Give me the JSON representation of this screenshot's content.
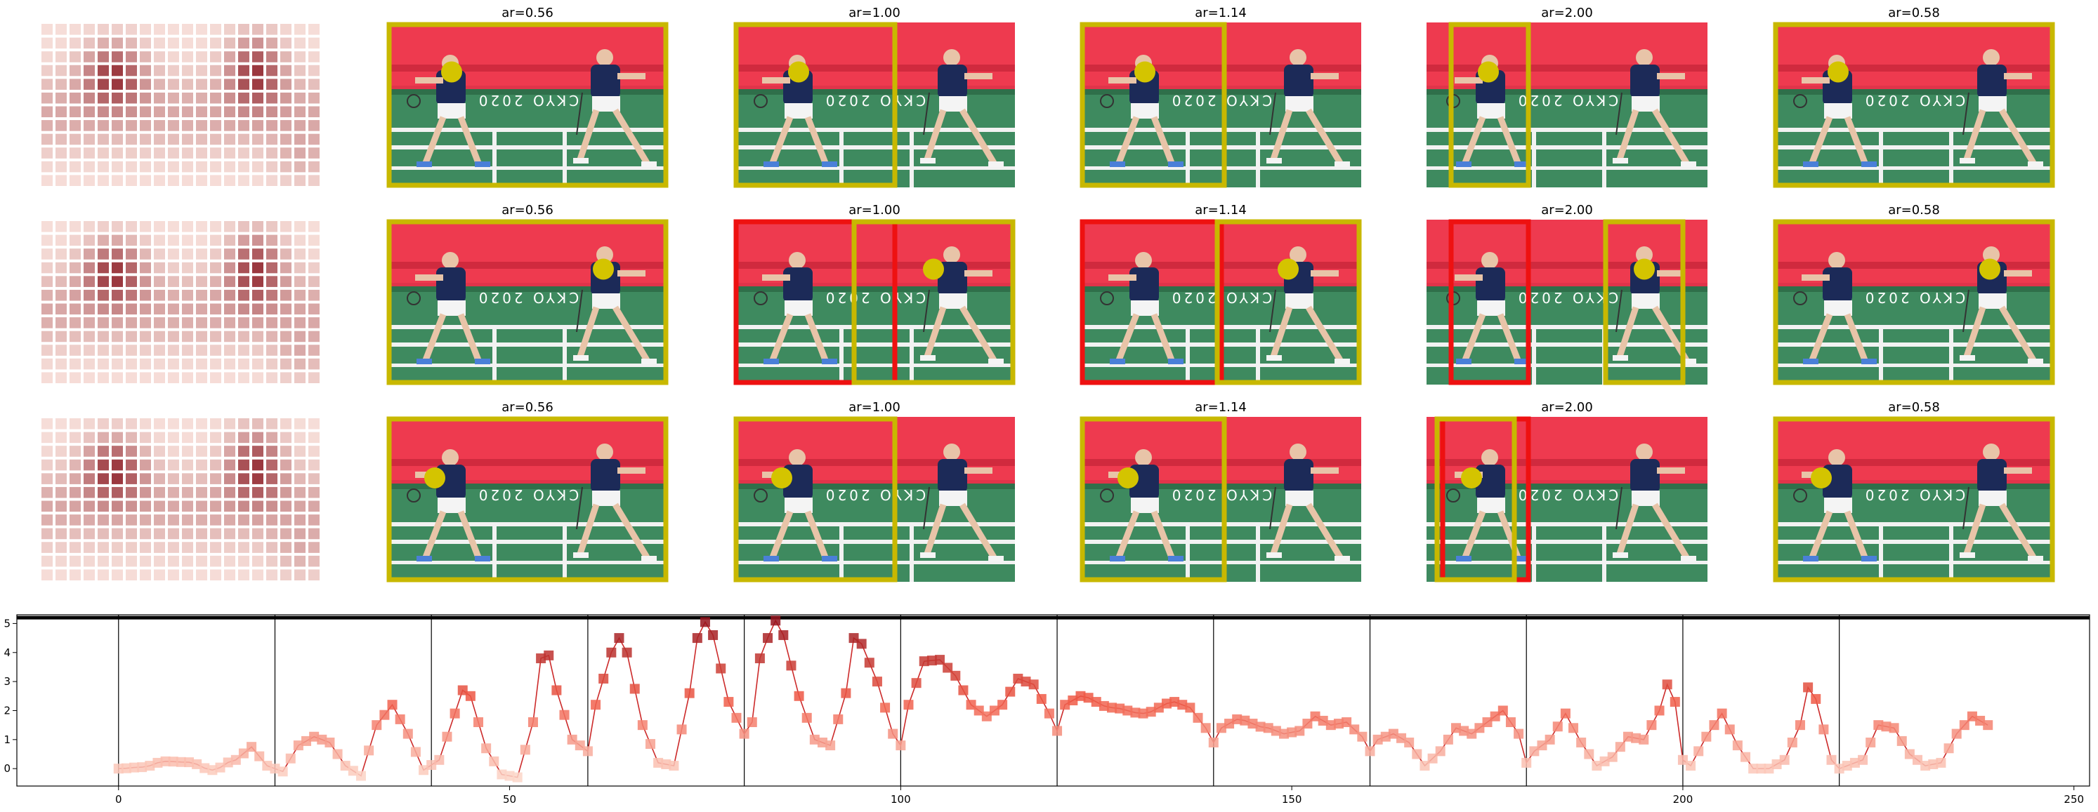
{
  "panel_titles": [
    [
      "",
      "ar=0.56",
      "ar=1.00",
      "ar=1.14",
      "ar=2.00",
      "ar=0.58"
    ],
    [
      "",
      "ar=0.56",
      "ar=1.00",
      "ar=1.14",
      "ar=2.00",
      "ar=0.58"
    ],
    [
      "",
      "ar=0.56",
      "ar=1.00",
      "ar=1.14",
      "ar=2.00",
      "ar=0.58"
    ]
  ],
  "crop_rows": [
    {
      "focus_player": "right-player",
      "crops": [
        {
          "aspect_ratio": 0.56,
          "crop_x_frac": [
            0.0,
            1.0
          ],
          "reference_crop_x_frac": null
        },
        {
          "aspect_ratio": 1.0,
          "crop_x_frac": [
            0.0,
            0.58
          ],
          "reference_crop_x_frac": null
        },
        {
          "aspect_ratio": 1.14,
          "crop_x_frac": [
            0.0,
            0.52
          ],
          "reference_crop_x_frac": null
        },
        {
          "aspect_ratio": 2.0,
          "crop_x_frac": [
            0.08,
            0.37
          ],
          "reference_crop_x_frac": null
        },
        {
          "aspect_ratio": 0.58,
          "crop_x_frac": [
            0.0,
            1.0
          ],
          "reference_crop_x_frac": null
        }
      ]
    },
    {
      "focus_player": "right-player",
      "crops": [
        {
          "aspect_ratio": 0.56,
          "crop_x_frac": [
            0.0,
            1.0
          ],
          "reference_crop_x_frac": null
        },
        {
          "aspect_ratio": 1.0,
          "crop_x_frac": [
            0.42,
            1.0
          ],
          "reference_crop_x_frac": [
            0.0,
            0.58
          ]
        },
        {
          "aspect_ratio": 1.14,
          "crop_x_frac": [
            0.48,
            1.0
          ],
          "reference_crop_x_frac": [
            0.0,
            0.51
          ]
        },
        {
          "aspect_ratio": 2.0,
          "crop_x_frac": [
            0.63,
            0.92
          ],
          "reference_crop_x_frac": [
            0.08,
            0.37
          ]
        },
        {
          "aspect_ratio": 0.58,
          "crop_x_frac": [
            0.0,
            1.0
          ],
          "reference_crop_x_frac": null
        }
      ]
    },
    {
      "focus_player": "left-player",
      "crops": [
        {
          "aspect_ratio": 0.56,
          "crop_x_frac": [
            0.0,
            1.0
          ],
          "reference_crop_x_frac": null
        },
        {
          "aspect_ratio": 1.0,
          "crop_x_frac": [
            0.0,
            0.58
          ],
          "reference_crop_x_frac": null
        },
        {
          "aspect_ratio": 1.14,
          "crop_x_frac": [
            0.0,
            0.52
          ],
          "reference_crop_x_frac": null
        },
        {
          "aspect_ratio": 2.0,
          "crop_x_frac": [
            0.03,
            0.32
          ],
          "reference_crop_x_frac": [
            0.05,
            0.37
          ]
        },
        {
          "aspect_ratio": 0.58,
          "crop_x_frac": [
            0.0,
            1.0
          ],
          "reference_crop_x_frac": null
        }
      ]
    }
  ],
  "colors": {
    "crop_box": "#c8b800",
    "reference_box": "#ee1111",
    "focus_dot": "#d4c400",
    "line": "#cc2a2a",
    "heat_low": "#fbe6e0",
    "heat_high": "#8b1b24"
  },
  "chart_data": {
    "type": "line",
    "title": "",
    "xlabel": "",
    "ylabel": "",
    "xlim": [
      -13,
      252
    ],
    "ylim": [
      -0.6,
      5.3
    ],
    "xticks": [
      0,
      50,
      100,
      150,
      200,
      250
    ],
    "yticks": [
      0,
      1,
      2,
      3,
      4,
      5
    ],
    "tick_labels_x": [
      "0",
      "50",
      "100",
      "150",
      "200",
      "250"
    ],
    "tick_labels_y": [
      "0",
      "1",
      "2",
      "3",
      "4",
      "5"
    ],
    "vertical_lines": [
      0,
      20,
      40,
      60,
      80,
      100,
      120,
      140,
      160,
      180,
      200,
      220
    ],
    "horizontal_line": 5.2,
    "grid": false,
    "legend": "none",
    "x_range": [
      0,
      239
    ],
    "keypoints": [
      [
        0,
        0.0
      ],
      [
        3,
        0.05
      ],
      [
        6,
        0.25
      ],
      [
        9,
        0.22
      ],
      [
        12,
        -0.05
      ],
      [
        15,
        0.3
      ],
      [
        17,
        0.75
      ],
      [
        19,
        0.1
      ],
      [
        21,
        -0.1
      ],
      [
        23,
        0.8
      ],
      [
        25,
        1.1
      ],
      [
        27,
        0.9
      ],
      [
        29,
        0.1
      ],
      [
        31,
        -0.25
      ],
      [
        33,
        1.5
      ],
      [
        35,
        2.2
      ],
      [
        37,
        1.2
      ],
      [
        39,
        -0.05
      ],
      [
        41,
        0.3
      ],
      [
        43,
        1.9
      ],
      [
        44,
        2.7
      ],
      [
        45,
        2.5
      ],
      [
        47,
        0.7
      ],
      [
        49,
        -0.2
      ],
      [
        51,
        -0.3
      ],
      [
        53,
        1.6
      ],
      [
        54,
        3.8
      ],
      [
        55,
        3.9
      ],
      [
        56,
        2.7
      ],
      [
        58,
        1.0
      ],
      [
        60,
        0.6
      ],
      [
        61,
        2.2
      ],
      [
        63,
        4.0
      ],
      [
        64,
        4.5
      ],
      [
        65,
        4.0
      ],
      [
        67,
        1.5
      ],
      [
        69,
        0.2
      ],
      [
        71,
        0.1
      ],
      [
        73,
        2.6
      ],
      [
        74,
        4.5
      ],
      [
        75,
        5.05
      ],
      [
        76,
        4.6
      ],
      [
        78,
        2.3
      ],
      [
        80,
        1.2
      ],
      [
        81,
        1.6
      ],
      [
        82,
        3.8
      ],
      [
        83,
        4.5
      ],
      [
        84,
        5.1
      ],
      [
        85,
        4.6
      ],
      [
        87,
        2.5
      ],
      [
        89,
        1.0
      ],
      [
        91,
        0.8
      ],
      [
        93,
        2.6
      ],
      [
        94,
        4.5
      ],
      [
        95,
        4.3
      ],
      [
        97,
        3.0
      ],
      [
        99,
        1.2
      ],
      [
        100,
        0.8
      ],
      [
        101,
        2.2
      ],
      [
        103,
        3.7
      ],
      [
        105,
        3.75
      ],
      [
        107,
        3.2
      ],
      [
        109,
        2.2
      ],
      [
        111,
        1.8
      ],
      [
        113,
        2.2
      ],
      [
        115,
        3.1
      ],
      [
        117,
        2.9
      ],
      [
        119,
        1.9
      ],
      [
        120,
        1.3
      ],
      [
        121,
        2.2
      ],
      [
        123,
        2.5
      ],
      [
        127,
        2.1
      ],
      [
        131,
        1.9
      ],
      [
        135,
        2.3
      ],
      [
        137,
        2.1
      ],
      [
        139,
        1.4
      ],
      [
        140,
        0.9
      ],
      [
        141,
        1.4
      ],
      [
        143,
        1.7
      ],
      [
        147,
        1.4
      ],
      [
        149,
        1.2
      ],
      [
        151,
        1.3
      ],
      [
        153,
        1.8
      ],
      [
        155,
        1.5
      ],
      [
        157,
        1.6
      ],
      [
        159,
        1.1
      ],
      [
        160,
        0.6
      ],
      [
        161,
        1.0
      ],
      [
        163,
        1.2
      ],
      [
        165,
        0.9
      ],
      [
        167,
        0.1
      ],
      [
        169,
        0.6
      ],
      [
        171,
        1.4
      ],
      [
        173,
        1.2
      ],
      [
        175,
        1.6
      ],
      [
        177,
        2.0
      ],
      [
        179,
        1.2
      ],
      [
        180,
        0.2
      ],
      [
        181,
        0.6
      ],
      [
        183,
        1.0
      ],
      [
        185,
        1.9
      ],
      [
        187,
        0.9
      ],
      [
        189,
        0.1
      ],
      [
        191,
        0.4
      ],
      [
        193,
        1.1
      ],
      [
        195,
        1.0
      ],
      [
        197,
        2.0
      ],
      [
        198,
        2.9
      ],
      [
        199,
        2.3
      ],
      [
        200,
        0.3
      ],
      [
        201,
        0.1
      ],
      [
        203,
        1.1
      ],
      [
        205,
        1.9
      ],
      [
        207,
        0.8
      ],
      [
        209,
        0.0
      ],
      [
        211,
        0.0
      ],
      [
        213,
        0.3
      ],
      [
        215,
        1.5
      ],
      [
        216,
        2.8
      ],
      [
        217,
        2.4
      ],
      [
        219,
        0.3
      ],
      [
        220,
        0.0
      ],
      [
        221,
        0.1
      ],
      [
        223,
        0.3
      ],
      [
        225,
        1.5
      ],
      [
        227,
        1.4
      ],
      [
        229,
        0.5
      ],
      [
        231,
        0.1
      ],
      [
        233,
        0.2
      ],
      [
        235,
        1.2
      ],
      [
        237,
        1.8
      ],
      [
        239,
        1.5
      ]
    ]
  }
}
